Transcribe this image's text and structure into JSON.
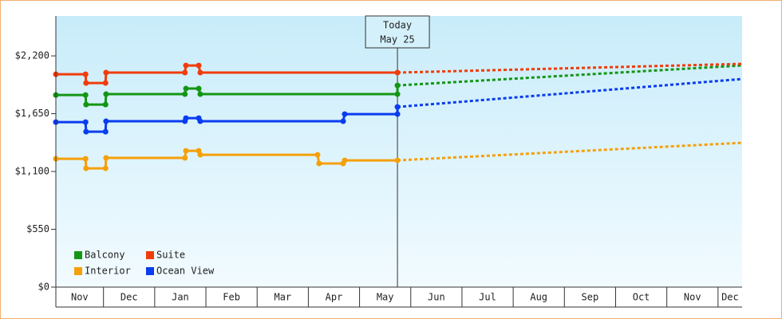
{
  "chart_data": {
    "type": "line",
    "categories": [
      "Nov",
      "Dec",
      "Jan",
      "Feb",
      "Mar",
      "Apr",
      "May",
      "Jun",
      "Jul",
      "Aug",
      "Sep",
      "Oct",
      "Nov",
      "Dec"
    ],
    "xlim": [
      0.07,
      13.47
    ],
    "ylim": [
      0,
      2580
    ],
    "yticks": [
      {
        "value": 0,
        "label": "$0"
      },
      {
        "value": 550,
        "label": "$550"
      },
      {
        "value": 1100,
        "label": "$1,100"
      },
      {
        "value": 1650,
        "label": "$1,650"
      },
      {
        "value": 2200,
        "label": "$2,200"
      }
    ],
    "annotation": {
      "x": 6.74,
      "lines": [
        "Today",
        "May 25"
      ]
    },
    "series": [
      {
        "name": "Balcony",
        "color": "#149614",
        "x": [
          0.07,
          0.65,
          0.66,
          1.04,
          1.05,
          2.59,
          2.61,
          2.86,
          2.89,
          6.74,
          6.74
        ],
        "values": [
          1828,
          1828,
          1737,
          1737,
          1836,
          1836,
          1889,
          1889,
          1836,
          1836,
          1919
        ],
        "projection": {
          "x": [
            6.74,
            13.47
          ],
          "values": [
            1919,
            2109
          ]
        }
      },
      {
        "name": "Suite",
        "color": "#f03c0a",
        "x": [
          0.07,
          0.65,
          0.66,
          1.04,
          1.05,
          2.59,
          2.61,
          2.86,
          2.89,
          6.74
        ],
        "values": [
          2025,
          2025,
          1942,
          1942,
          2041,
          2041,
          2109,
          2109,
          2041,
          2041
        ],
        "projection": {
          "x": [
            6.74,
            13.47
          ],
          "values": [
            2041,
            2124
          ]
        }
      },
      {
        "name": "Interior",
        "color": "#f5a00a",
        "x": [
          0.07,
          0.65,
          0.66,
          1.04,
          1.05,
          2.59,
          2.61,
          2.86,
          2.89,
          5.18,
          5.21,
          5.68,
          5.71,
          6.74
        ],
        "values": [
          1221,
          1221,
          1130,
          1130,
          1229,
          1229,
          1297,
          1297,
          1259,
          1259,
          1176,
          1176,
          1206,
          1206
        ],
        "projection": {
          "x": [
            6.74,
            13.47
          ],
          "values": [
            1206,
            1373
          ]
        }
      },
      {
        "name": "Ocean View",
        "color": "#0a3cf0",
        "x": [
          0.07,
          0.65,
          0.66,
          1.04,
          1.05,
          2.59,
          2.61,
          2.86,
          2.89,
          5.68,
          5.71,
          6.74,
          6.74
        ],
        "values": [
          1570,
          1570,
          1479,
          1479,
          1578,
          1578,
          1608,
          1608,
          1578,
          1578,
          1646,
          1646,
          1714
        ],
        "projection": {
          "x": [
            6.74,
            13.47
          ],
          "values": [
            1714,
            1980
          ]
        }
      }
    ]
  }
}
